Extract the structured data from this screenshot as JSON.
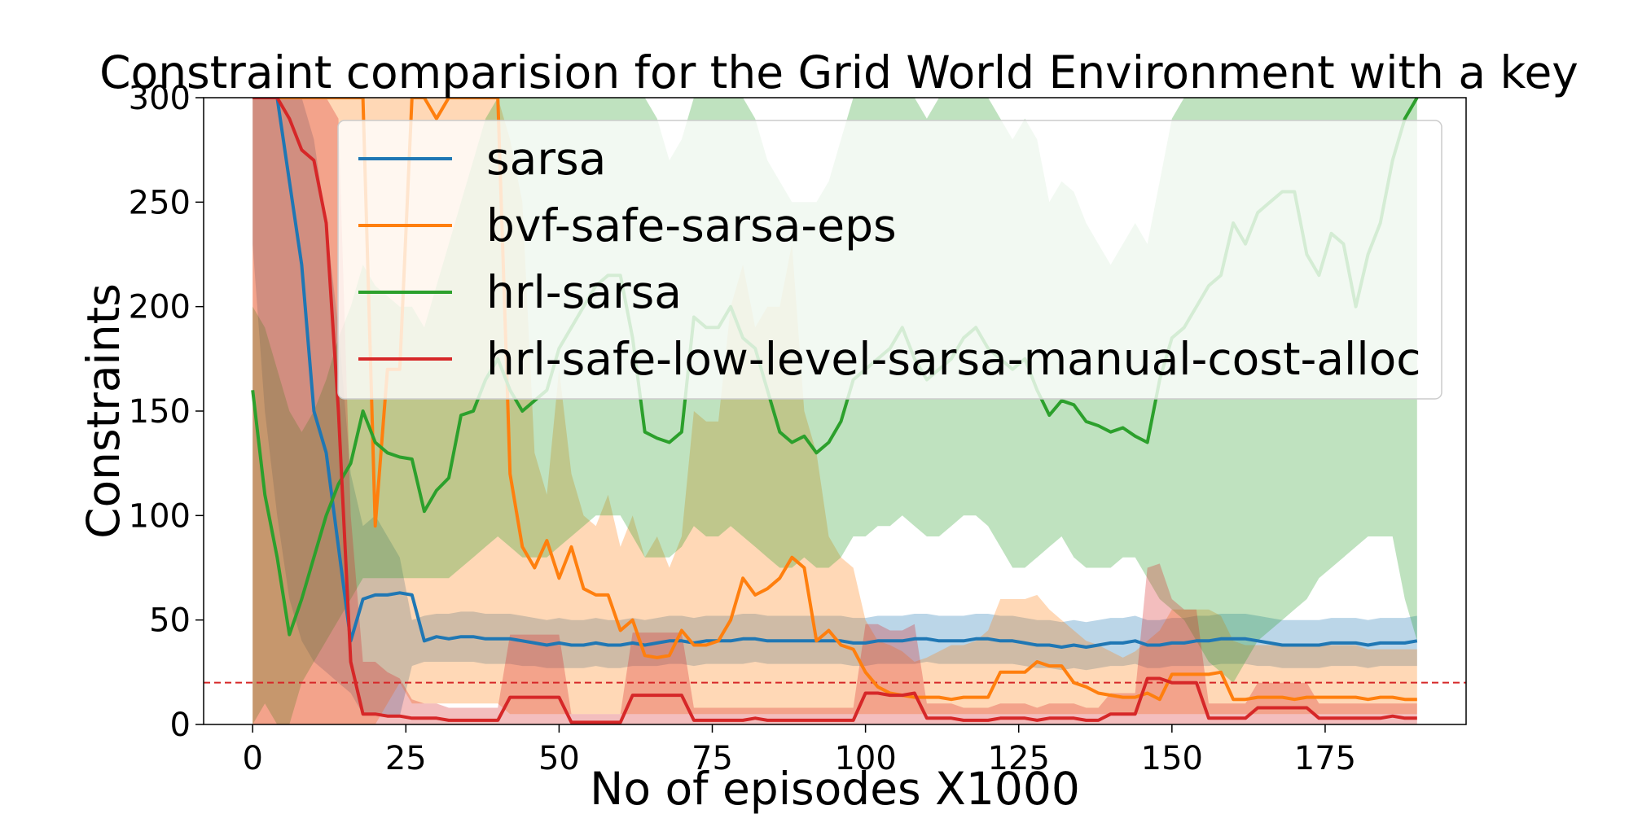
{
  "chart_data": {
    "type": "line",
    "title": "Constraint comparision for the Grid World Environment with a key",
    "xlabel": "No of episodes X1000",
    "ylabel": "Constraints",
    "xlim": [
      -8,
      198
    ],
    "ylim": [
      0,
      300
    ],
    "xticks": [
      0,
      25,
      50,
      75,
      100,
      125,
      150,
      175
    ],
    "yticks": [
      0,
      50,
      100,
      150,
      200,
      250,
      300
    ],
    "threshold": 20,
    "threshold_color": "#d62728",
    "legend_position": "upper right",
    "grid": false,
    "x": [
      0,
      2,
      4,
      6,
      8,
      10,
      12,
      14,
      16,
      18,
      20,
      22,
      24,
      26,
      28,
      30,
      32,
      34,
      36,
      38,
      40,
      42,
      44,
      46,
      48,
      50,
      52,
      54,
      56,
      58,
      60,
      62,
      64,
      66,
      68,
      70,
      72,
      74,
      76,
      78,
      80,
      82,
      84,
      86,
      88,
      90,
      92,
      94,
      96,
      98,
      100,
      102,
      104,
      106,
      108,
      110,
      112,
      114,
      116,
      118,
      120,
      122,
      124,
      126,
      128,
      130,
      132,
      134,
      136,
      138,
      140,
      142,
      144,
      146,
      148,
      150,
      152,
      154,
      156,
      158,
      160,
      162,
      164,
      166,
      168,
      170,
      172,
      174,
      176,
      178,
      180,
      182,
      184,
      186,
      188,
      190
    ],
    "series": [
      {
        "name": "sarsa",
        "color": "#1f77b4",
        "values": [
          300,
          300,
          300,
          260,
          220,
          150,
          130,
          85,
          40,
          60,
          62,
          62,
          63,
          62,
          40,
          42,
          41,
          42,
          42,
          41,
          41,
          41,
          40,
          39,
          38,
          39,
          38,
          38,
          39,
          38,
          38,
          39,
          38,
          39,
          40,
          40,
          39,
          40,
          40,
          40,
          41,
          41,
          40,
          40,
          40,
          40,
          40,
          40,
          40,
          39,
          39,
          40,
          40,
          40,
          41,
          41,
          40,
          40,
          40,
          41,
          41,
          40,
          40,
          39,
          38,
          38,
          37,
          38,
          37,
          38,
          39,
          39,
          40,
          38,
          38,
          39,
          39,
          40,
          40,
          41,
          41,
          41,
          40,
          39,
          38,
          38,
          38,
          38,
          39,
          39,
          39,
          38,
          39,
          39,
          39,
          40
        ],
        "band_low": [
          230,
          150,
          100,
          60,
          40,
          30,
          25,
          20,
          15,
          5,
          5,
          4,
          4,
          28,
          30,
          30,
          30,
          30,
          30,
          29,
          29,
          29,
          28,
          28,
          27,
          27,
          27,
          27,
          28,
          27,
          27,
          28,
          28,
          28,
          29,
          29,
          28,
          29,
          29,
          29,
          29,
          30,
          29,
          29,
          29,
          29,
          29,
          29,
          29,
          28,
          28,
          29,
          29,
          29,
          29,
          30,
          29,
          29,
          29,
          29,
          29,
          29,
          29,
          28,
          27,
          27,
          26,
          27,
          26,
          27,
          28,
          28,
          29,
          27,
          27,
          28,
          28,
          28,
          28,
          29,
          29,
          29,
          28,
          28,
          27,
          27,
          27,
          27,
          28,
          28,
          28,
          27,
          28,
          28,
          28,
          28
        ],
        "band_high": [
          300,
          300,
          300,
          300,
          300,
          280,
          240,
          190,
          120,
          95,
          100,
          90,
          80,
          50,
          52,
          53,
          53,
          54,
          54,
          53,
          53,
          53,
          52,
          51,
          50,
          51,
          50,
          50,
          51,
          50,
          50,
          51,
          50,
          51,
          52,
          52,
          51,
          52,
          52,
          52,
          53,
          53,
          52,
          52,
          52,
          52,
          52,
          52,
          52,
          51,
          51,
          52,
          52,
          52,
          53,
          53,
          52,
          52,
          52,
          53,
          53,
          52,
          52,
          51,
          50,
          50,
          49,
          50,
          49,
          50,
          51,
          51,
          52,
          50,
          50,
          51,
          51,
          52,
          52,
          53,
          53,
          53,
          52,
          51,
          50,
          50,
          50,
          50,
          51,
          51,
          51,
          50,
          51,
          51,
          51,
          52
        ]
      },
      {
        "name": "bvf-safe-sarsa-eps",
        "color": "#ff7f0e",
        "values": [
          300,
          300,
          300,
          300,
          300,
          300,
          300,
          300,
          300,
          300,
          95,
          170,
          170,
          300,
          300,
          290,
          300,
          300,
          300,
          300,
          300,
          120,
          85,
          75,
          88,
          70,
          85,
          65,
          62,
          62,
          45,
          50,
          33,
          32,
          33,
          45,
          38,
          38,
          40,
          50,
          70,
          62,
          65,
          70,
          80,
          75,
          40,
          45,
          38,
          36,
          25,
          18,
          15,
          14,
          13,
          13,
          13,
          12,
          13,
          13,
          13,
          25,
          25,
          25,
          30,
          28,
          28,
          20,
          18,
          15,
          14,
          13,
          13,
          15,
          12,
          24,
          24,
          24,
          24,
          25,
          12,
          12,
          13,
          13,
          13,
          12,
          13,
          13,
          13,
          13,
          13,
          12,
          13,
          13,
          12,
          12
        ],
        "band_low": [
          0,
          0,
          0,
          0,
          0,
          0,
          0,
          0,
          0,
          0,
          0,
          10,
          20,
          10,
          10,
          10,
          10,
          10,
          10,
          10,
          10,
          5,
          5,
          5,
          5,
          5,
          5,
          5,
          5,
          5,
          5,
          5,
          5,
          5,
          5,
          5,
          5,
          5,
          5,
          5,
          5,
          5,
          5,
          5,
          5,
          5,
          5,
          5,
          5,
          5,
          5,
          5,
          5,
          5,
          5,
          5,
          5,
          5,
          5,
          5,
          5,
          5,
          5,
          5,
          5,
          5,
          5,
          5,
          5,
          5,
          5,
          5,
          5,
          5,
          5,
          5,
          5,
          5,
          5,
          5,
          5,
          5,
          5,
          5,
          5,
          5,
          5,
          5,
          5,
          5,
          5,
          5,
          5,
          5,
          5,
          5
        ],
        "band_high": [
          300,
          300,
          300,
          300,
          300,
          300,
          300,
          300,
          300,
          300,
          300,
          300,
          300,
          300,
          300,
          300,
          300,
          300,
          300,
          300,
          300,
          280,
          250,
          130,
          110,
          170,
          120,
          100,
          95,
          110,
          85,
          100,
          80,
          90,
          75,
          90,
          150,
          145,
          145,
          200,
          220,
          190,
          200,
          200,
          230,
          150,
          130,
          90,
          80,
          75,
          50,
          40,
          38,
          35,
          30,
          32,
          35,
          38,
          38,
          40,
          45,
          60,
          60,
          60,
          62,
          55,
          50,
          45,
          40,
          38,
          35,
          32,
          35,
          40,
          45,
          55,
          55,
          55,
          55,
          52,
          40,
          38,
          38,
          38,
          38,
          38,
          38,
          38,
          38,
          38,
          38,
          36,
          36,
          36,
          36,
          36
        ]
      },
      {
        "name": "hrl-sarsa",
        "color": "#2ca02c",
        "values": [
          160,
          110,
          80,
          43,
          60,
          80,
          100,
          115,
          125,
          150,
          135,
          130,
          128,
          127,
          102,
          112,
          118,
          148,
          150,
          165,
          175,
          160,
          150,
          155,
          160,
          180,
          190,
          200,
          210,
          215,
          215,
          185,
          140,
          137,
          135,
          140,
          195,
          190,
          190,
          200,
          185,
          180,
          160,
          140,
          135,
          138,
          130,
          135,
          145,
          165,
          170,
          175,
          180,
          190,
          175,
          165,
          170,
          175,
          185,
          190,
          180,
          175,
          170,
          175,
          160,
          148,
          155,
          153,
          145,
          143,
          140,
          142,
          138,
          135,
          165,
          185,
          190,
          200,
          210,
          215,
          240,
          230,
          245,
          250,
          255,
          255,
          225,
          215,
          235,
          230,
          200,
          225,
          240,
          270,
          290,
          300
        ],
        "band_low": [
          0,
          10,
          0,
          0,
          20,
          30,
          40,
          50,
          60,
          70,
          70,
          70,
          70,
          70,
          70,
          70,
          70,
          75,
          80,
          85,
          90,
          85,
          80,
          80,
          80,
          85,
          90,
          95,
          100,
          100,
          100,
          90,
          80,
          80,
          80,
          85,
          95,
          90,
          90,
          95,
          90,
          85,
          80,
          75,
          75,
          80,
          75,
          75,
          80,
          90,
          90,
          95,
          95,
          100,
          95,
          90,
          90,
          95,
          100,
          100,
          95,
          85,
          75,
          75,
          80,
          85,
          90,
          80,
          75,
          75,
          75,
          80,
          80,
          70,
          60,
          55,
          50,
          40,
          30,
          25,
          20,
          30,
          40,
          45,
          50,
          55,
          60,
          70,
          75,
          80,
          85,
          90,
          90,
          90,
          60,
          40
        ],
        "band_high": [
          200,
          190,
          170,
          150,
          140,
          150,
          165,
          185,
          200,
          220,
          210,
          205,
          200,
          200,
          190,
          210,
          230,
          250,
          270,
          290,
          300,
          300,
          300,
          300,
          300,
          300,
          300,
          300,
          300,
          300,
          300,
          300,
          300,
          290,
          270,
          280,
          300,
          300,
          300,
          300,
          300,
          290,
          270,
          260,
          250,
          250,
          250,
          260,
          280,
          300,
          300,
          300,
          300,
          300,
          300,
          290,
          300,
          300,
          300,
          300,
          300,
          290,
          280,
          290,
          280,
          250,
          260,
          255,
          240,
          230,
          220,
          230,
          240,
          230,
          260,
          290,
          300,
          300,
          300,
          300,
          300,
          300,
          300,
          300,
          300,
          300,
          300,
          300,
          300,
          300,
          300,
          300,
          300,
          300,
          300,
          300
        ]
      },
      {
        "name": "hrl-safe-low-level-sarsa-manual-cost-alloc",
        "color": "#d62728",
        "values": [
          300,
          300,
          300,
          290,
          275,
          270,
          240,
          150,
          30,
          5,
          5,
          4,
          4,
          3,
          3,
          3,
          2,
          2,
          2,
          2,
          2,
          13,
          13,
          13,
          13,
          13,
          1,
          1,
          1,
          1,
          1,
          14,
          14,
          14,
          14,
          14,
          2,
          2,
          2,
          2,
          2,
          3,
          2,
          2,
          2,
          2,
          2,
          2,
          2,
          2,
          15,
          15,
          14,
          14,
          15,
          3,
          3,
          3,
          2,
          2,
          2,
          3,
          3,
          3,
          2,
          3,
          3,
          3,
          2,
          2,
          5,
          5,
          5,
          22,
          22,
          20,
          20,
          20,
          3,
          3,
          3,
          3,
          8,
          8,
          8,
          8,
          8,
          3,
          3,
          3,
          3,
          3,
          3,
          4,
          3,
          3
        ],
        "band_low": [
          0,
          0,
          0,
          0,
          0,
          0,
          0,
          0,
          0,
          0,
          0,
          0,
          0,
          0,
          0,
          0,
          0,
          0,
          0,
          0,
          0,
          0,
          0,
          0,
          0,
          0,
          0,
          0,
          0,
          0,
          0,
          0,
          0,
          0,
          0,
          0,
          0,
          0,
          0,
          0,
          0,
          0,
          0,
          0,
          0,
          0,
          0,
          0,
          0,
          0,
          0,
          0,
          0,
          0,
          0,
          0,
          0,
          0,
          0,
          0,
          0,
          0,
          0,
          0,
          0,
          0,
          0,
          0,
          0,
          0,
          0,
          0,
          0,
          0,
          0,
          0,
          0,
          0,
          0,
          0,
          0,
          0,
          0,
          0,
          0,
          0,
          0,
          0,
          0,
          0,
          0,
          0,
          0,
          0,
          0,
          0
        ],
        "band_high": [
          300,
          300,
          300,
          300,
          300,
          300,
          300,
          290,
          100,
          30,
          30,
          25,
          22,
          12,
          10,
          10,
          8,
          8,
          8,
          8,
          8,
          43,
          43,
          43,
          43,
          43,
          5,
          5,
          5,
          5,
          5,
          44,
          44,
          44,
          44,
          44,
          8,
          8,
          8,
          8,
          8,
          8,
          8,
          8,
          8,
          8,
          8,
          8,
          8,
          8,
          48,
          48,
          45,
          45,
          48,
          10,
          10,
          10,
          8,
          8,
          8,
          10,
          10,
          10,
          8,
          10,
          10,
          10,
          8,
          8,
          15,
          15,
          15,
          75,
          77,
          60,
          55,
          55,
          10,
          10,
          10,
          10,
          20,
          20,
          20,
          20,
          20,
          10,
          10,
          10,
          10,
          10,
          10,
          10,
          10,
          10
        ]
      }
    ]
  }
}
